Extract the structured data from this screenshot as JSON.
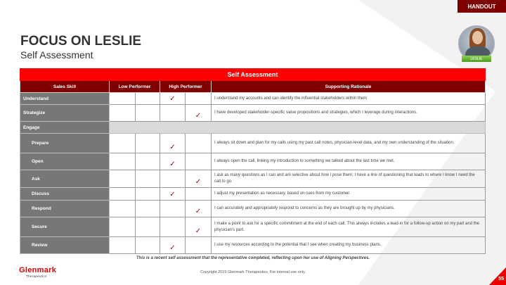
{
  "header": {
    "badge": "HANDOUT",
    "title": "FOCUS ON LESLIE",
    "subtitle": "Self Assessment",
    "avatar_name": "LESLIE"
  },
  "table": {
    "title": "Self Assessment",
    "columns": [
      "Sales Skill",
      "Low Performer",
      "High Performer",
      "Supporting Rationale"
    ],
    "rows": [
      {
        "skill": "Understand",
        "level": 3,
        "sub": false,
        "rationale": "I understand my accounts and can identify the influential stakeholders within them."
      },
      {
        "skill": "Strategize",
        "level": 4,
        "sub": false,
        "rationale": "I have developed stakeholder-specific value propositions and strategies, which I leverage during interactions."
      },
      {
        "skill": "Engage",
        "level": 0,
        "sub": false,
        "group": true,
        "rationale": ""
      },
      {
        "skill": "Prepare",
        "level": 3,
        "sub": true,
        "rationale": "I always sit down and plan for my calls using my past call notes, physician-level data, and my own understanding of the situation."
      },
      {
        "skill": "Open",
        "level": 3,
        "sub": true,
        "rationale": "I always open the call, linking my introduction to something we talked about the last time we met."
      },
      {
        "skill": "Ask",
        "level": 4,
        "sub": true,
        "rationale": "I ask as many questions as I can and am selective about how I pose them; I have a line of questioning that leads to where I know I need the call to go."
      },
      {
        "skill": "Discuss",
        "level": 3,
        "sub": true,
        "rationale": "I adjust my presentation as necessary, based on cues from my customer."
      },
      {
        "skill": "Respond",
        "level": 4,
        "sub": true,
        "rationale": "I can accurately and appropriately respond to concerns as they are brought up by my physicians."
      },
      {
        "skill": "Secure",
        "level": 4,
        "sub": true,
        "rationale": "I make a point to ask for a specific commitment at the end of each call.  This always includes a lead-in for a follow-up action on my part and the physician's part."
      },
      {
        "skill": "Review",
        "level": 3,
        "sub": true,
        "rationale": "I use my resources according to the potential that I see when creating my business plans."
      }
    ],
    "check_glyph": "✓"
  },
  "footer": {
    "note": "This is a recent self assessment that the representative completed, reflecting upon her use of Aligning Perspectives.",
    "logo": "Glenmark",
    "logo_sub": "Therapeutics",
    "copyright": "Copyright 2019 Glenmark Therapeutics. For internal use only.",
    "page": "55"
  },
  "colors": {
    "title_bar": "#ff0000",
    "header_bar": "#7f0000",
    "skill_cell": "#777777",
    "check": "#aa0000"
  }
}
